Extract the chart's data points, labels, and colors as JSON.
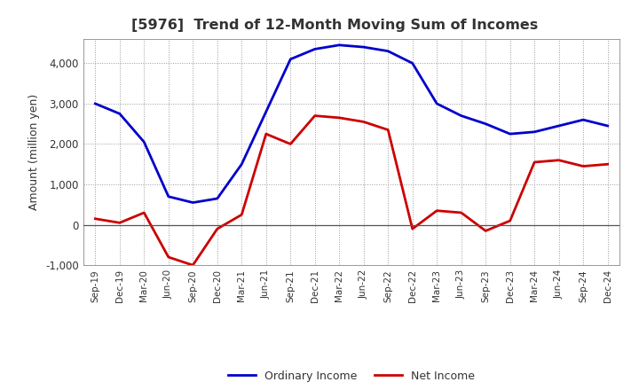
{
  "title": "[5976]  Trend of 12-Month Moving Sum of Incomes",
  "ylabel": "Amount (million yen)",
  "xlabels": [
    "Sep-19",
    "Dec-19",
    "Mar-20",
    "Jun-20",
    "Sep-20",
    "Dec-20",
    "Mar-21",
    "Jun-21",
    "Sep-21",
    "Dec-21",
    "Mar-22",
    "Jun-22",
    "Sep-22",
    "Dec-22",
    "Mar-23",
    "Jun-23",
    "Sep-23",
    "Dec-23",
    "Mar-24",
    "Jun-24",
    "Sep-24",
    "Dec-24"
  ],
  "ordinary_income": [
    3000,
    2750,
    2050,
    700,
    550,
    650,
    1500,
    2800,
    4100,
    4350,
    4450,
    4400,
    4300,
    4000,
    3000,
    2700,
    2500,
    2250,
    2300,
    2450,
    2600,
    2450
  ],
  "net_income": [
    150,
    50,
    300,
    -800,
    -1000,
    -100,
    250,
    2250,
    2000,
    2700,
    2650,
    2550,
    2350,
    -100,
    350,
    300,
    -150,
    100,
    1550,
    1600,
    1450,
    1500
  ],
  "ordinary_color": "#0000cc",
  "net_color": "#cc0000",
  "ylim": [
    -1000,
    4600
  ],
  "yticks": [
    -1000,
    0,
    1000,
    2000,
    3000,
    4000
  ],
  "title_color": "#333333",
  "background_color": "#ffffff",
  "grid_color": "#999999"
}
